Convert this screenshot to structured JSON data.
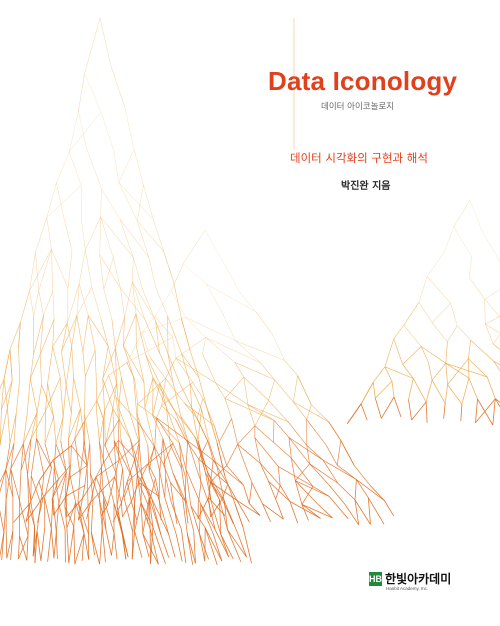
{
  "cover": {
    "title": "Data Iconology",
    "title_korean": "데이터 아이코놀로지",
    "subtitle": "데이터 시각화의 구현과 해석",
    "author": "박진완 지음",
    "publisher": {
      "mark": "HB",
      "name": "한빛아카데미",
      "sub": "Hanbit Academy, Inc."
    },
    "colors": {
      "title": "#e0401c",
      "artwork_light": "#f5c27a",
      "artwork_mid": "#eda23c",
      "artwork_dark": "#e06a1c",
      "publisher_green": "#1f8a3a"
    },
    "artwork": "orange-fractal-tree-network"
  }
}
